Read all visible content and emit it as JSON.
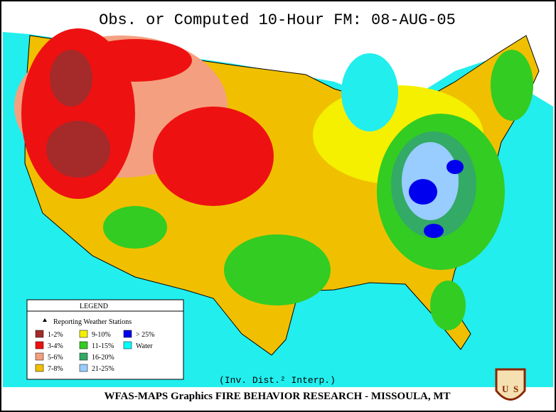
{
  "header": {
    "title": "Obs. or Computed 10-Hour FM:   08-AUG-05"
  },
  "legend": {
    "title": "LEGEND",
    "stations": "Reporting Weather Stations",
    "items": [
      {
        "label": "1-2%",
        "color": "#a52a2a"
      },
      {
        "label": "3-4%",
        "color": "#ee1111"
      },
      {
        "label": "5-6%",
        "color": "#f4a080"
      },
      {
        "label": "7-8%",
        "color": "#f0c000"
      },
      {
        "label": "9-10%",
        "color": "#f4f000"
      },
      {
        "label": "11-15%",
        "color": "#33cc22"
      },
      {
        "label": "16-20%",
        "color": "#33aa66"
      },
      {
        "label": "21-25%",
        "color": "#99ccff"
      },
      {
        "label": "> 25%",
        "color": "#0000ee"
      },
      {
        "label": "Water",
        "color": "#00ffff"
      }
    ]
  },
  "interp": "(Inv. Dist.² Interp.)",
  "footer": "WFAS-MAPS Graphics  FIRE BEHAVIOR RESEARCH - MISSOULA, MT",
  "logo": {
    "left": "U",
    "right": "S"
  }
}
